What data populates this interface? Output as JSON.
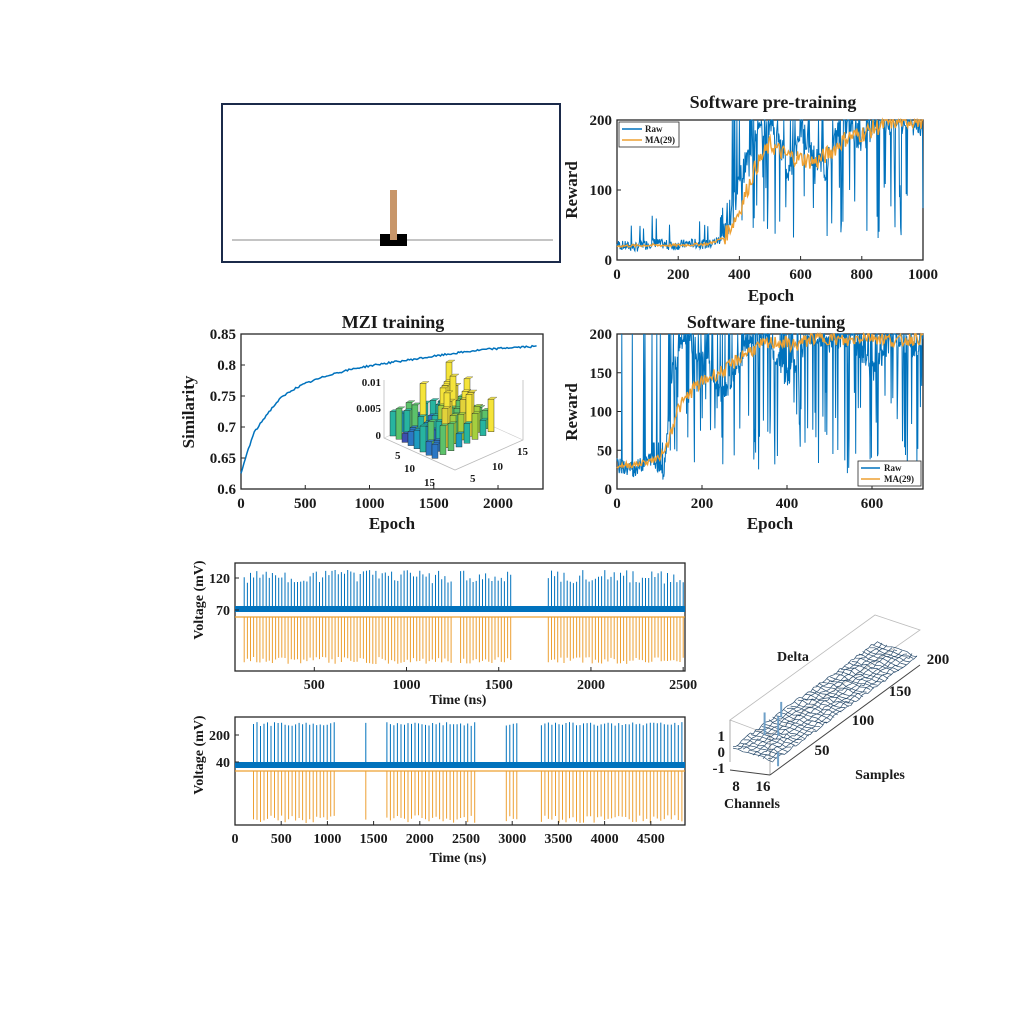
{
  "colors": {
    "raw": "#0072BD",
    "ma": "#EDA032",
    "cart": "#000000",
    "pole": "#C8966A",
    "track": "#888888",
    "frame": "#1B2A4A"
  },
  "chart_data": [
    {
      "id": "cartpole",
      "type": "other",
      "description_items": [
        "cart",
        "pole",
        "track"
      ]
    },
    {
      "id": "pretraining",
      "type": "line",
      "title": "Software pre-training",
      "xlabel": "Epoch",
      "ylabel": "Reward",
      "xlim": [
        0,
        1000
      ],
      "ylim": [
        0,
        200
      ],
      "xticks": [
        "0",
        "200",
        "400",
        "600",
        "800",
        "1000"
      ],
      "yticks": [
        "0",
        "100",
        "200"
      ],
      "legend": [
        "Raw",
        "MA(29)"
      ],
      "legend_position": "top-left",
      "series": [
        {
          "name": "Raw",
          "x": [
            0,
            60,
            120,
            180,
            240,
            300,
            340,
            380,
            400,
            430,
            460,
            500,
            540,
            560,
            600,
            640,
            680,
            720,
            760,
            800,
            840,
            880,
            920,
            960,
            1000
          ],
          "values": [
            22,
            18,
            25,
            20,
            24,
            22,
            30,
            70,
            110,
            150,
            180,
            195,
            160,
            120,
            190,
            150,
            130,
            180,
            200,
            165,
            200,
            200,
            200,
            200,
            190
          ]
        },
        {
          "name": "MA(29)",
          "x": [
            0,
            100,
            200,
            300,
            350,
            400,
            450,
            500,
            550,
            600,
            650,
            700,
            750,
            800,
            850,
            900,
            950,
            1000
          ],
          "values": [
            20,
            21,
            21,
            23,
            32,
            70,
            130,
            165,
            150,
            145,
            140,
            155,
            175,
            180,
            190,
            198,
            200,
            200
          ]
        }
      ]
    },
    {
      "id": "mzi",
      "type": "line",
      "title": "MZI training",
      "xlabel": "Epoch",
      "ylabel": "Similarity",
      "xlim": [
        0,
        2350
      ],
      "ylim": [
        0.6,
        0.85
      ],
      "xticks": [
        "0",
        "500",
        "1000",
        "1500",
        "2000"
      ],
      "yticks": [
        "0.6",
        "0.65",
        "0.7",
        "0.75",
        "0.8",
        "0.85"
      ],
      "series": [
        {
          "name": "Similarity",
          "x": [
            0,
            50,
            100,
            200,
            300,
            400,
            500,
            700,
            900,
            1100,
            1300,
            1500,
            1700,
            1900,
            2100,
            2300
          ],
          "values": [
            0.625,
            0.66,
            0.69,
            0.72,
            0.745,
            0.76,
            0.77,
            0.785,
            0.795,
            0.802,
            0.808,
            0.814,
            0.82,
            0.825,
            0.828,
            0.83
          ]
        }
      ],
      "inset": {
        "type": "bar3d",
        "zticks": [
          "0",
          "0.005",
          "0.01"
        ],
        "row_ticks": [
          "5",
          "10",
          "15"
        ],
        "col_ticks": [
          "5",
          "10",
          "15"
        ]
      }
    },
    {
      "id": "finetuning",
      "type": "line",
      "title": "Software fine-tuning",
      "xlabel": "Epoch",
      "ylabel": "Reward",
      "xlim": [
        0,
        720
      ],
      "ylim": [
        0,
        200
      ],
      "xticks": [
        "0",
        "200",
        "400",
        "600"
      ],
      "yticks": [
        "0",
        "50",
        "100",
        "150",
        "200"
      ],
      "legend": [
        "Raw",
        "MA(29)"
      ],
      "legend_position": "bottom-right",
      "series": [
        {
          "name": "Raw",
          "x": [
            0,
            40,
            80,
            110,
            130,
            160,
            200,
            250,
            300,
            350,
            400,
            450,
            500,
            550,
            600,
            650,
            700,
            720
          ],
          "values": [
            30,
            25,
            40,
            20,
            150,
            200,
            170,
            120,
            180,
            200,
            140,
            200,
            190,
            200,
            150,
            200,
            180,
            200
          ]
        },
        {
          "name": "MA(29)",
          "x": [
            0,
            50,
            100,
            120,
            140,
            180,
            220,
            260,
            300,
            340,
            380,
            420,
            460,
            500,
            540,
            580,
            620,
            660,
            700,
            720
          ],
          "values": [
            30,
            32,
            40,
            60,
            100,
            130,
            145,
            155,
            175,
            185,
            190,
            185,
            195,
            195,
            190,
            198,
            195,
            190,
            195,
            195
          ]
        }
      ]
    },
    {
      "id": "voltage1",
      "type": "line",
      "xlabel": "Time (ns)",
      "ylabel": "Voltage (mV)",
      "xlim": [
        70,
        2510
      ],
      "yticks": [
        "70",
        "120"
      ],
      "xticks": [
        "500",
        "1000",
        "1500",
        "2000",
        "2500"
      ],
      "series": [
        {
          "name": "Output spikes",
          "baseline": 70,
          "peak": 125
        },
        {
          "name": "Input pulses",
          "baseline": 0,
          "depth": -45
        }
      ]
    },
    {
      "id": "voltage2",
      "type": "line",
      "xlabel": "Time (ns)",
      "ylabel": "Voltage (mV)",
      "xlim": [
        0,
        4870
      ],
      "yticks": [
        "40",
        "200"
      ],
      "xticks": [
        "0",
        "500",
        "1000",
        "1500",
        "2000",
        "2500",
        "3000",
        "3500",
        "4000",
        "4500"
      ],
      "series": [
        {
          "name": "Output spikes",
          "baseline": 40,
          "peak": 220
        },
        {
          "name": "Input pulses",
          "baseline": 0,
          "depth": -200
        }
      ]
    },
    {
      "id": "delta",
      "type": "surface3d",
      "title": "Delta",
      "xlabel": "Channels",
      "ylabel": "Samples",
      "zticks": [
        "1",
        "0",
        "-1"
      ],
      "channel_ticks": [
        "8",
        "16"
      ],
      "sample_ticks": [
        "50",
        "100",
        "150",
        "200"
      ]
    }
  ]
}
